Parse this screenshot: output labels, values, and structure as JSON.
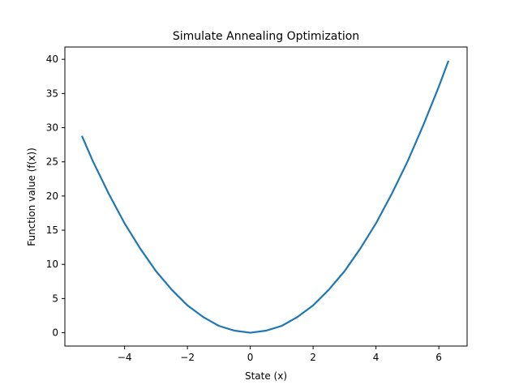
{
  "chart_data": {
    "type": "line",
    "title": "Simulate Annealing Optimization",
    "xlabel": "State (x)",
    "ylabel": "Function value (f(x))",
    "xlim": [
      -5.9,
      6.9
    ],
    "ylim": [
      -1.95,
      41.8
    ],
    "xticks": [
      -4,
      -2,
      0,
      2,
      4,
      6
    ],
    "xtick_labels": [
      "−4",
      "−2",
      "0",
      "2",
      "4",
      "6"
    ],
    "yticks": [
      0,
      5,
      10,
      15,
      20,
      25,
      30,
      35,
      40
    ],
    "ytick_labels": [
      "0",
      "5",
      "10",
      "15",
      "20",
      "25",
      "30",
      "35",
      "40"
    ],
    "grid": false,
    "series": [
      {
        "color": "#1f77b4",
        "x": [
          -5.35,
          -5.0,
          -4.5,
          -4.0,
          -3.5,
          -3.0,
          -2.5,
          -2.0,
          -1.5,
          -1.0,
          -0.5,
          0.0,
          0.5,
          1.0,
          1.5,
          2.0,
          2.5,
          3.0,
          3.5,
          4.0,
          4.5,
          5.0,
          5.5,
          6.0,
          6.3
        ],
        "y": [
          28.7,
          25.0,
          20.3,
          16.0,
          12.3,
          9.0,
          6.3,
          4.0,
          2.3,
          1.0,
          0.3,
          0.0,
          0.3,
          1.0,
          2.3,
          4.0,
          6.3,
          9.0,
          12.3,
          16.0,
          20.3,
          25.0,
          30.3,
          36.0,
          39.7
        ]
      }
    ]
  }
}
